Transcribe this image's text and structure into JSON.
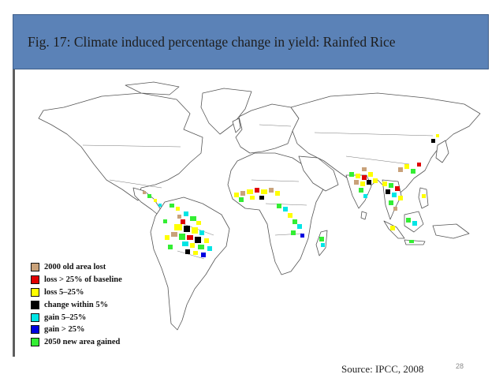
{
  "slide": {
    "title": "Fig. 17: Climate induced percentage change in yield: Rainfed Rice",
    "source": "Source: IPCC, 2008",
    "page_number": "28",
    "title_bar_color": "#5b82b7"
  },
  "legend": {
    "items": [
      {
        "label": "2000 old area lost",
        "color": "#c9a27a"
      },
      {
        "label": "loss > 25% of baseline",
        "color": "#e00000"
      },
      {
        "label": "loss 5–25%",
        "color": "#ffff00"
      },
      {
        "label": "change within 5%",
        "color": "#000000"
      },
      {
        "label": "gain 5–25%",
        "color": "#00e5e5"
      },
      {
        "label": "gain > 25%",
        "color": "#0000e0"
      },
      {
        "label": "2050 new area gained",
        "color": "#33ee33"
      }
    ]
  },
  "map": {
    "type": "world-map",
    "projection": "equirectangular",
    "land_color": "#ffffff",
    "border_color": "#555555",
    "regions_with_data": [
      "Latin America",
      "West Africa",
      "Central Africa",
      "Madagascar",
      "South Asia",
      "Southeast Asia",
      "East Asia"
    ]
  }
}
